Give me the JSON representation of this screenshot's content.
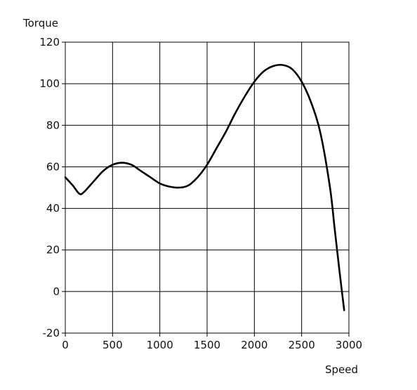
{
  "chart_data": {
    "type": "line",
    "title": "",
    "xlabel": "Speed",
    "ylabel": "Torque",
    "xlim": [
      0,
      3000
    ],
    "ylim": [
      -20,
      120
    ],
    "grid": true,
    "x_ticks": [
      0,
      500,
      1000,
      1500,
      2000,
      2500,
      3000
    ],
    "y_ticks": [
      -20,
      0,
      20,
      40,
      60,
      80,
      100,
      120
    ],
    "x_tick_labels": [
      "0",
      "500",
      "1000",
      "1500",
      "2000",
      "2500",
      "3000"
    ],
    "y_tick_labels": [
      "-20",
      "0",
      "20",
      "40",
      "60",
      "80",
      "100",
      "120"
    ],
    "series": [
      {
        "x": [
          0,
          80,
          150,
          200,
          300,
          400,
          500,
          600,
          700,
          800,
          900,
          1000,
          1100,
          1200,
          1300,
          1400,
          1500,
          1600,
          1700,
          1800,
          1900,
          2000,
          2100,
          2200,
          2300,
          2400,
          2500,
          2600,
          2700,
          2800,
          2850,
          2900,
          2950
        ],
        "y": [
          55,
          51,
          47,
          48,
          53,
          58,
          61,
          62,
          61,
          58,
          55,
          52,
          50.5,
          50,
          51,
          55,
          61,
          69,
          77,
          86,
          94,
          101,
          106,
          108.5,
          109,
          107,
          101,
          91,
          76,
          50,
          30,
          10,
          -9
        ],
        "color": "#000000"
      }
    ]
  }
}
